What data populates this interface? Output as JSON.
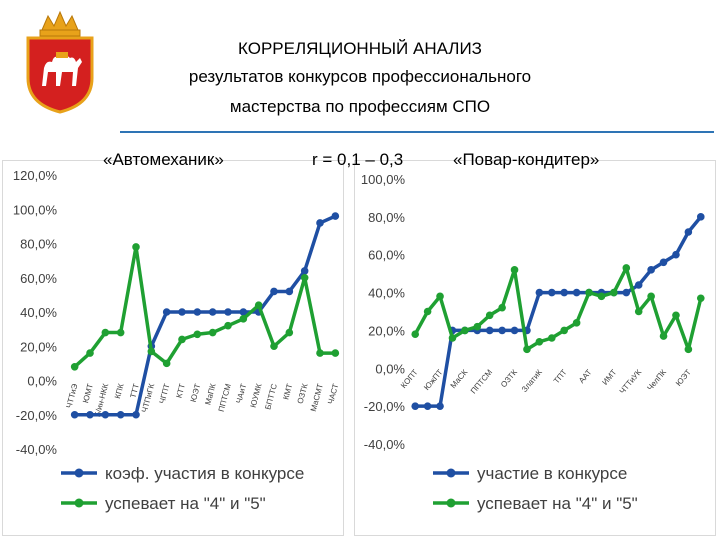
{
  "header": {
    "title_line1": "КОРРЕЛЯЦИОННЫЙ АНАЛИЗ",
    "title_line2": "результатов конкурсов профессионального",
    "title_line3": "мастерства по профессиям  СПО",
    "left_profession": "«Автомеханик»",
    "correlation": "r = 0,1 – 0,3",
    "right_profession": "«Повар-кондитер»"
  },
  "colors": {
    "blue": "#1f4fa3",
    "green": "#1fa032",
    "rule": "#2e74b5",
    "grid": "#d9d9d9"
  },
  "chart_data": [
    {
      "type": "line",
      "title": "«Автомеханик»",
      "ylim": [
        -0.4,
        1.2
      ],
      "yticks": [
        "-40,0%",
        "-20,0%",
        "0,0%",
        "20,0%",
        "40,0%",
        "60,0%",
        "80,0%",
        "100,0%",
        "120,0%"
      ],
      "grid": false,
      "legend_position": "bottom",
      "categories": [
        "ЧТТиЭ",
        "ЮМТ",
        "Б/ин-НКК",
        "КПК",
        "ТТТ",
        "ЧТПиГК",
        "ЧГПТ",
        "КТТ",
        "ЮЭТ",
        "МаПК",
        "ППТСМ",
        "ЧАиТ",
        "ЮУМК",
        "БПТТС",
        "КМТ",
        "ОЗТК",
        "МаСМТ",
        "ЧАСТ"
      ],
      "series": [
        {
          "name": "коэф. участия в конкурсе",
          "color": "#1f4fa3",
          "values": [
            -0.2,
            -0.2,
            -0.2,
            -0.2,
            -0.2,
            0.2,
            0.4,
            0.4,
            0.4,
            0.4,
            0.4,
            0.4,
            0.4,
            0.52,
            0.52,
            0.64,
            0.92,
            0.96
          ]
        },
        {
          "name": "успевает на \"4\" и \"5\"",
          "color": "#1fa032",
          "values": [
            0.08,
            0.16,
            0.28,
            0.28,
            0.78,
            0.17,
            0.1,
            0.24,
            0.27,
            0.28,
            0.32,
            0.36,
            0.44,
            0.2,
            0.28,
            0.6,
            0.16,
            0.16
          ]
        }
      ]
    },
    {
      "type": "line",
      "title": "«Повар-кондитер»",
      "ylim": [
        -0.4,
        1.0
      ],
      "yticks": [
        "-40,0%",
        "-20,0%",
        "0,0%",
        "20,0%",
        "40,0%",
        "60,0%",
        "80,0%",
        "100,0%"
      ],
      "grid": false,
      "legend_position": "bottom",
      "categories": [
        "КОПТ",
        "",
        "ЮжПТ",
        "",
        "МаСК",
        "",
        "ППТСМ",
        "",
        "ОЗТК",
        "",
        "ЗлатиК",
        "",
        "ТПТ",
        "",
        "ААТ",
        "",
        "ИМТ",
        "",
        "ЧТТиУК",
        "",
        "ЧелПК",
        "",
        "ЮЭТ",
        ""
      ],
      "series": [
        {
          "name": "участие в конкурсе",
          "color": "#1f4fa3",
          "values": [
            -0.2,
            -0.2,
            -0.2,
            0.2,
            0.2,
            0.2,
            0.2,
            0.2,
            0.2,
            0.2,
            0.4,
            0.4,
            0.4,
            0.4,
            0.4,
            0.4,
            0.4,
            0.4,
            0.44,
            0.52,
            0.56,
            0.6,
            0.72,
            0.8
          ]
        },
        {
          "name": "успевает на \"4\" и \"5\"",
          "color": "#1fa032",
          "values": [
            0.18,
            0.3,
            0.38,
            0.16,
            0.2,
            0.22,
            0.28,
            0.32,
            0.52,
            0.1,
            0.14,
            0.16,
            0.2,
            0.24,
            0.4,
            0.38,
            0.4,
            0.53,
            0.3,
            0.38,
            0.17,
            0.28,
            0.1,
            0.37
          ]
        }
      ]
    }
  ]
}
